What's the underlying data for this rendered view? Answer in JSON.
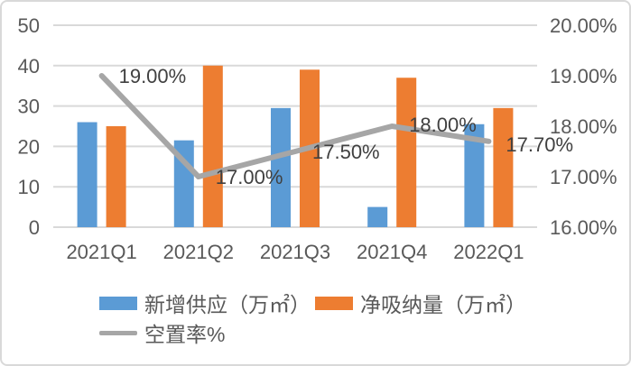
{
  "chart_data": {
    "type": "combo-bar-line",
    "categories": [
      "2021Q1",
      "2021Q2",
      "2021Q3",
      "2021Q4",
      "2022Q1"
    ],
    "series": [
      {
        "name": "新增供应（万㎡）",
        "type": "bar",
        "axis": "left",
        "color": "#5B9BD5",
        "values": [
          26,
          21.5,
          29.5,
          5,
          25.5
        ]
      },
      {
        "name": "净吸纳量（万㎡）",
        "type": "bar",
        "axis": "left",
        "color": "#ED7D31",
        "values": [
          25,
          40,
          39,
          37,
          29.5
        ]
      },
      {
        "name": "空置率%",
        "type": "line",
        "axis": "right",
        "color": "#A6A6A6",
        "values": [
          19.0,
          17.0,
          17.5,
          18.0,
          17.7
        ],
        "data_labels": [
          "19.00%",
          "17.00%",
          "17.50%",
          "18.00%",
          "17.70%"
        ]
      }
    ],
    "left_axis": {
      "min": 0,
      "max": 50,
      "step": 10,
      "tick_labels": [
        "0",
        "10",
        "20",
        "30",
        "40",
        "50"
      ]
    },
    "right_axis": {
      "min": 16,
      "max": 20,
      "step": 1,
      "tick_labels": [
        "16.00%",
        "17.00%",
        "18.00%",
        "19.00%",
        "20.00%"
      ]
    },
    "grid": true,
    "legend_position": "bottom-left"
  },
  "colors": {
    "bar_new_supply": "#5B9BD5",
    "bar_net_absorption": "#ED7D31",
    "line_vacancy": "#A6A6A6",
    "gridline": "#D9D9D9",
    "axis_text": "#595959",
    "data_label_text": "#404040",
    "border": "#D9D9D9",
    "background": "#FFFFFF"
  }
}
